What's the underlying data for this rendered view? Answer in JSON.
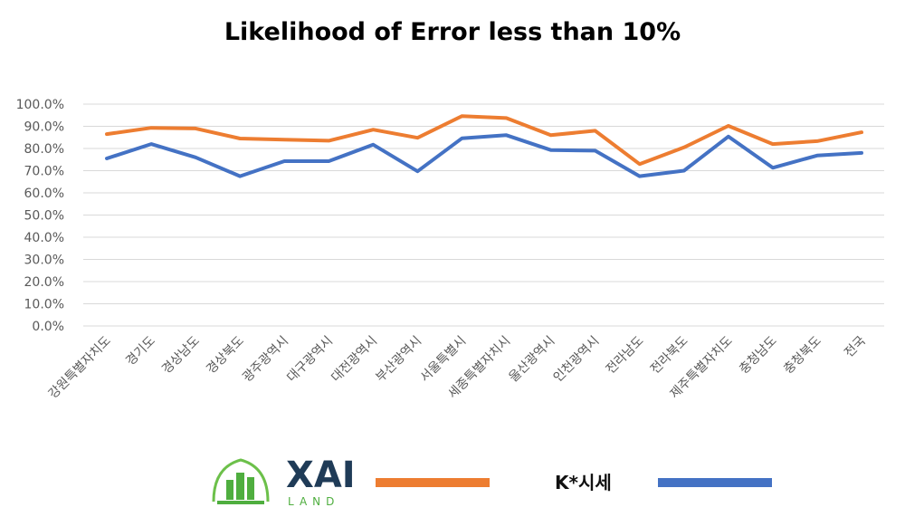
{
  "chart_data": {
    "type": "line",
    "title": "Likelihood of Error less than 10%",
    "categories": [
      "강원특별자치도",
      "경기도",
      "경상남도",
      "경상북도",
      "광주광역시",
      "대구광역시",
      "대전광역시",
      "부산광역시",
      "서울특별시",
      "세종특별자치시",
      "울산광역시",
      "인천광역시",
      "전라남도",
      "전라북도",
      "제주특별자치도",
      "충청남도",
      "충청북도",
      "전국"
    ],
    "ylim": [
      0,
      100
    ],
    "yticks": [
      "0.0%",
      "10.0%",
      "20.0%",
      "30.0%",
      "40.0%",
      "50.0%",
      "60.0%",
      "70.0%",
      "80.0%",
      "90.0%",
      "100.0%"
    ],
    "grid": true,
    "legend_position": "bottom",
    "series": [
      {
        "name": "XAI LAND",
        "color": "#ED7D31",
        "values": [
          86.5,
          89.3,
          89.0,
          84.5,
          84.0,
          83.5,
          88.5,
          84.8,
          94.6,
          93.7,
          86.0,
          88.0,
          73.0,
          80.5,
          90.2,
          82.0,
          83.3,
          87.3
        ]
      },
      {
        "name": "K*시세",
        "color": "#4472C4",
        "values": [
          75.5,
          82.0,
          76.0,
          67.5,
          74.3,
          74.3,
          81.7,
          69.7,
          84.6,
          86.0,
          79.3,
          79.0,
          67.5,
          70.0,
          85.4,
          71.3,
          76.8,
          78.0
        ]
      }
    ]
  },
  "legend": {
    "logo_main": "XAI",
    "logo_sub": "LAND",
    "second_label": "K*시세"
  }
}
